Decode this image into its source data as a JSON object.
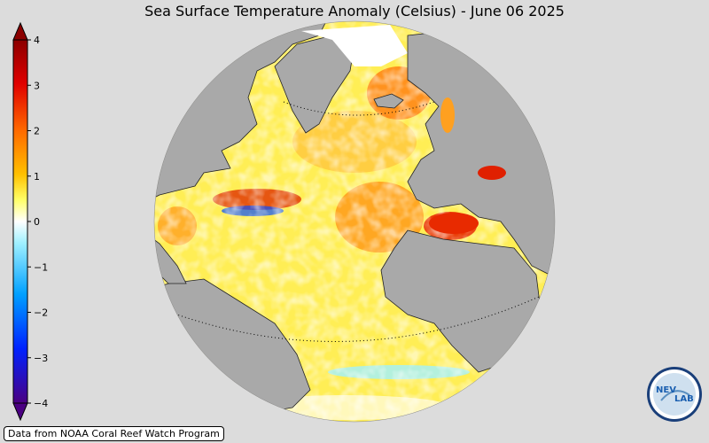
{
  "title": "Sea Surface Temperature Anomaly (Celsius) - June 06 2025",
  "colorbar": {
    "ticks": [
      "4",
      "3",
      "2",
      "1",
      "0",
      "−1",
      "−2",
      "−3",
      "−4"
    ],
    "min": -4,
    "max": 4,
    "colors": [
      "#4b0082",
      "#0022ff",
      "#00a0ff",
      "#9ff0ff",
      "#ffffff",
      "#ffff66",
      "#ffc000",
      "#ff6a00",
      "#e00000",
      "#8b0000"
    ]
  },
  "map": {
    "ocean_color": "#ffee55",
    "land_color": "#a9a9a9",
    "ice_color": "#ffffff"
  },
  "credit": "Data from NOAA Coral Reef Watch Program",
  "logo": {
    "text_left": "NEV",
    "text_right": "LAB"
  }
}
